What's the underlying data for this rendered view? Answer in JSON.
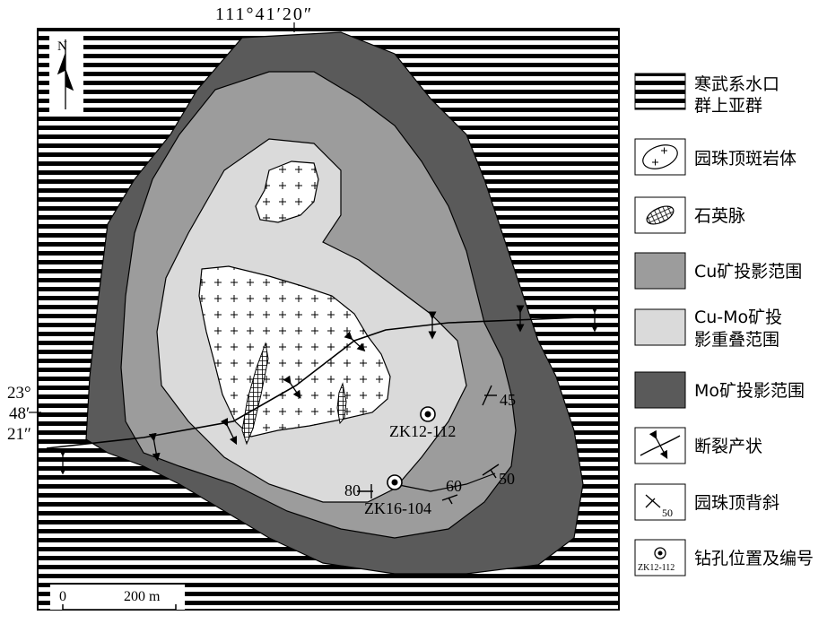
{
  "colors": {
    "cu": "#9c9c9c",
    "cumo": "#dadada",
    "mo": "#5a5a5a",
    "stripe": "#000000"
  },
  "coords": {
    "top_longitude": "111°41′20″",
    "left_lat_deg": "23°",
    "left_lat_min": "48′",
    "left_lat_sec": "21″"
  },
  "north_arrow": {
    "label": "N"
  },
  "map_labels": {
    "zk12": "ZK12-112",
    "zk16": "ZK16-104",
    "dip_45": "45",
    "dip_50": "50",
    "dip_60": "60",
    "dip_80": "80"
  },
  "scale_bar": {
    "zero": "0",
    "distance": "200 m"
  },
  "legend": {
    "cambrian_line1": "寒武系水口",
    "cambrian_line2": "群上亚群",
    "porphyry": "园珠顶斑岩体",
    "quartz_vein": "石英脉",
    "cu_projection": "Cu矿投影范围",
    "cumo_line1": "Cu-Mo矿投",
    "cumo_line2": "影重叠范围",
    "mo_projection": "Mo矿投影范围",
    "fault": "断裂产状",
    "anticline": "园珠顶背斜",
    "anticline_symbol_value": "50",
    "drillhole": "钻孔位置及编号",
    "drillhole_symbol_label": "ZK12-112"
  }
}
